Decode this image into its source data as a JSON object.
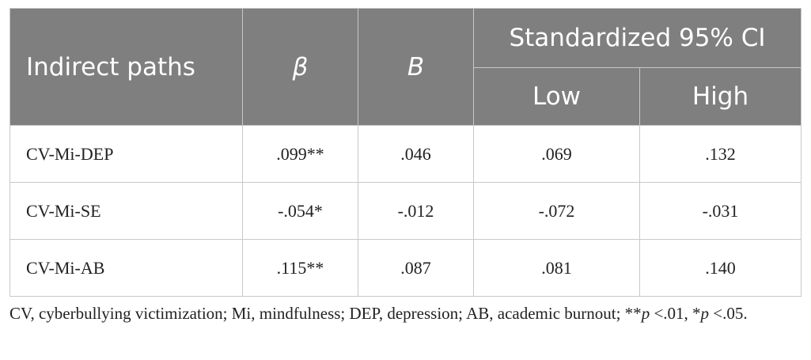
{
  "table": {
    "header": {
      "indirect_paths": "Indirect paths",
      "beta": "β",
      "b": "B",
      "ci": "Standardized 95% CI",
      "low": "Low",
      "high": "High"
    },
    "rows": [
      [
        "CV-Mi-DEP",
        ".099**",
        ".046",
        ".069",
        ".132"
      ],
      [
        "CV-Mi-SE",
        "-.054*",
        "-.012",
        "-.072",
        "-.031"
      ],
      [
        "CV-Mi-AB",
        ".115**",
        ".087",
        ".081",
        ".140"
      ]
    ]
  },
  "footnote": [
    "CV, cyberbullying victimization; Mi, mindfulness; DEP, depression; AB, academic burnout; **",
    "p",
    " <.01, *",
    "p",
    " <.05."
  ]
}
